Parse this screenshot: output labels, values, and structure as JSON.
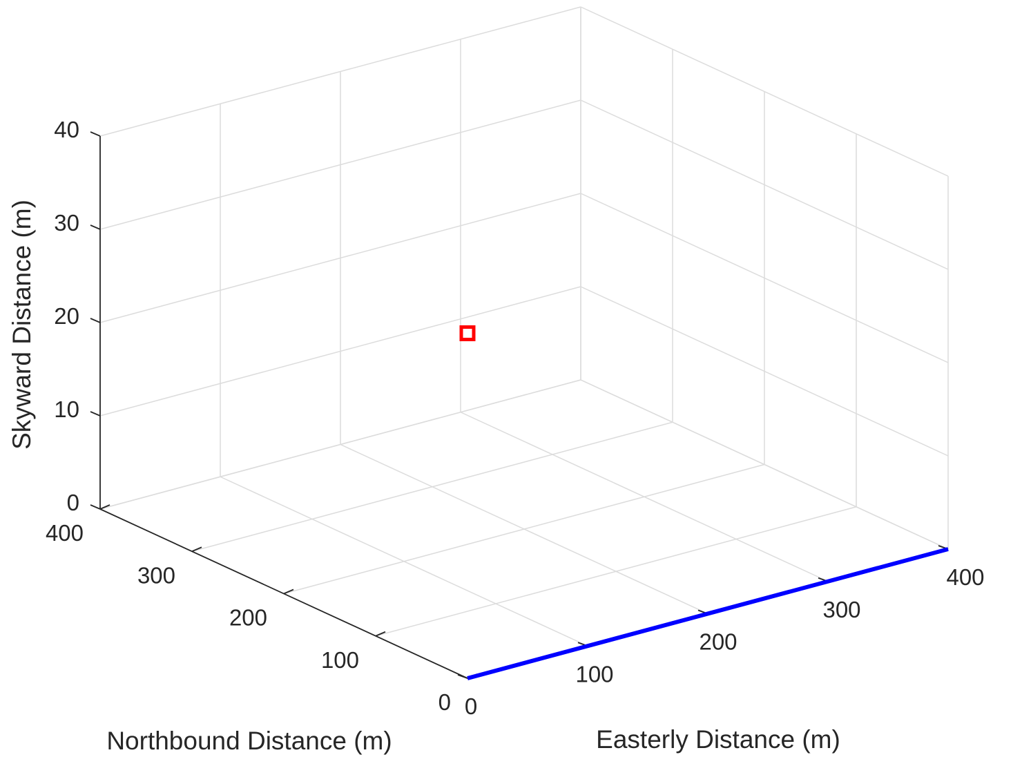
{
  "chart_data": {
    "type": "line3d",
    "xlabel": "Easterly Distance (m)",
    "ylabel": "Northbound Distance (m)",
    "zlabel": "Skyward Distance (m)",
    "xlim": [
      0,
      400
    ],
    "ylim": [
      0,
      400
    ],
    "zlim": [
      0,
      40
    ],
    "x_ticks": [
      "0",
      "100",
      "200",
      "300",
      "400"
    ],
    "y_ticks": [
      "0",
      "100",
      "200",
      "300",
      "400"
    ],
    "z_ticks": [
      "0",
      "10",
      "20",
      "30",
      "40"
    ],
    "grid": true,
    "series": [
      {
        "kind": "line",
        "color": "#0000ff",
        "points": [
          {
            "x": 0,
            "y": 0,
            "z": 0
          },
          {
            "x": 400,
            "y": 0,
            "z": 0
          }
        ]
      },
      {
        "kind": "marker",
        "marker": "square",
        "color": "#ff0000",
        "points": [
          {
            "x": 0,
            "y": 0,
            "z": 37
          }
        ]
      }
    ]
  }
}
